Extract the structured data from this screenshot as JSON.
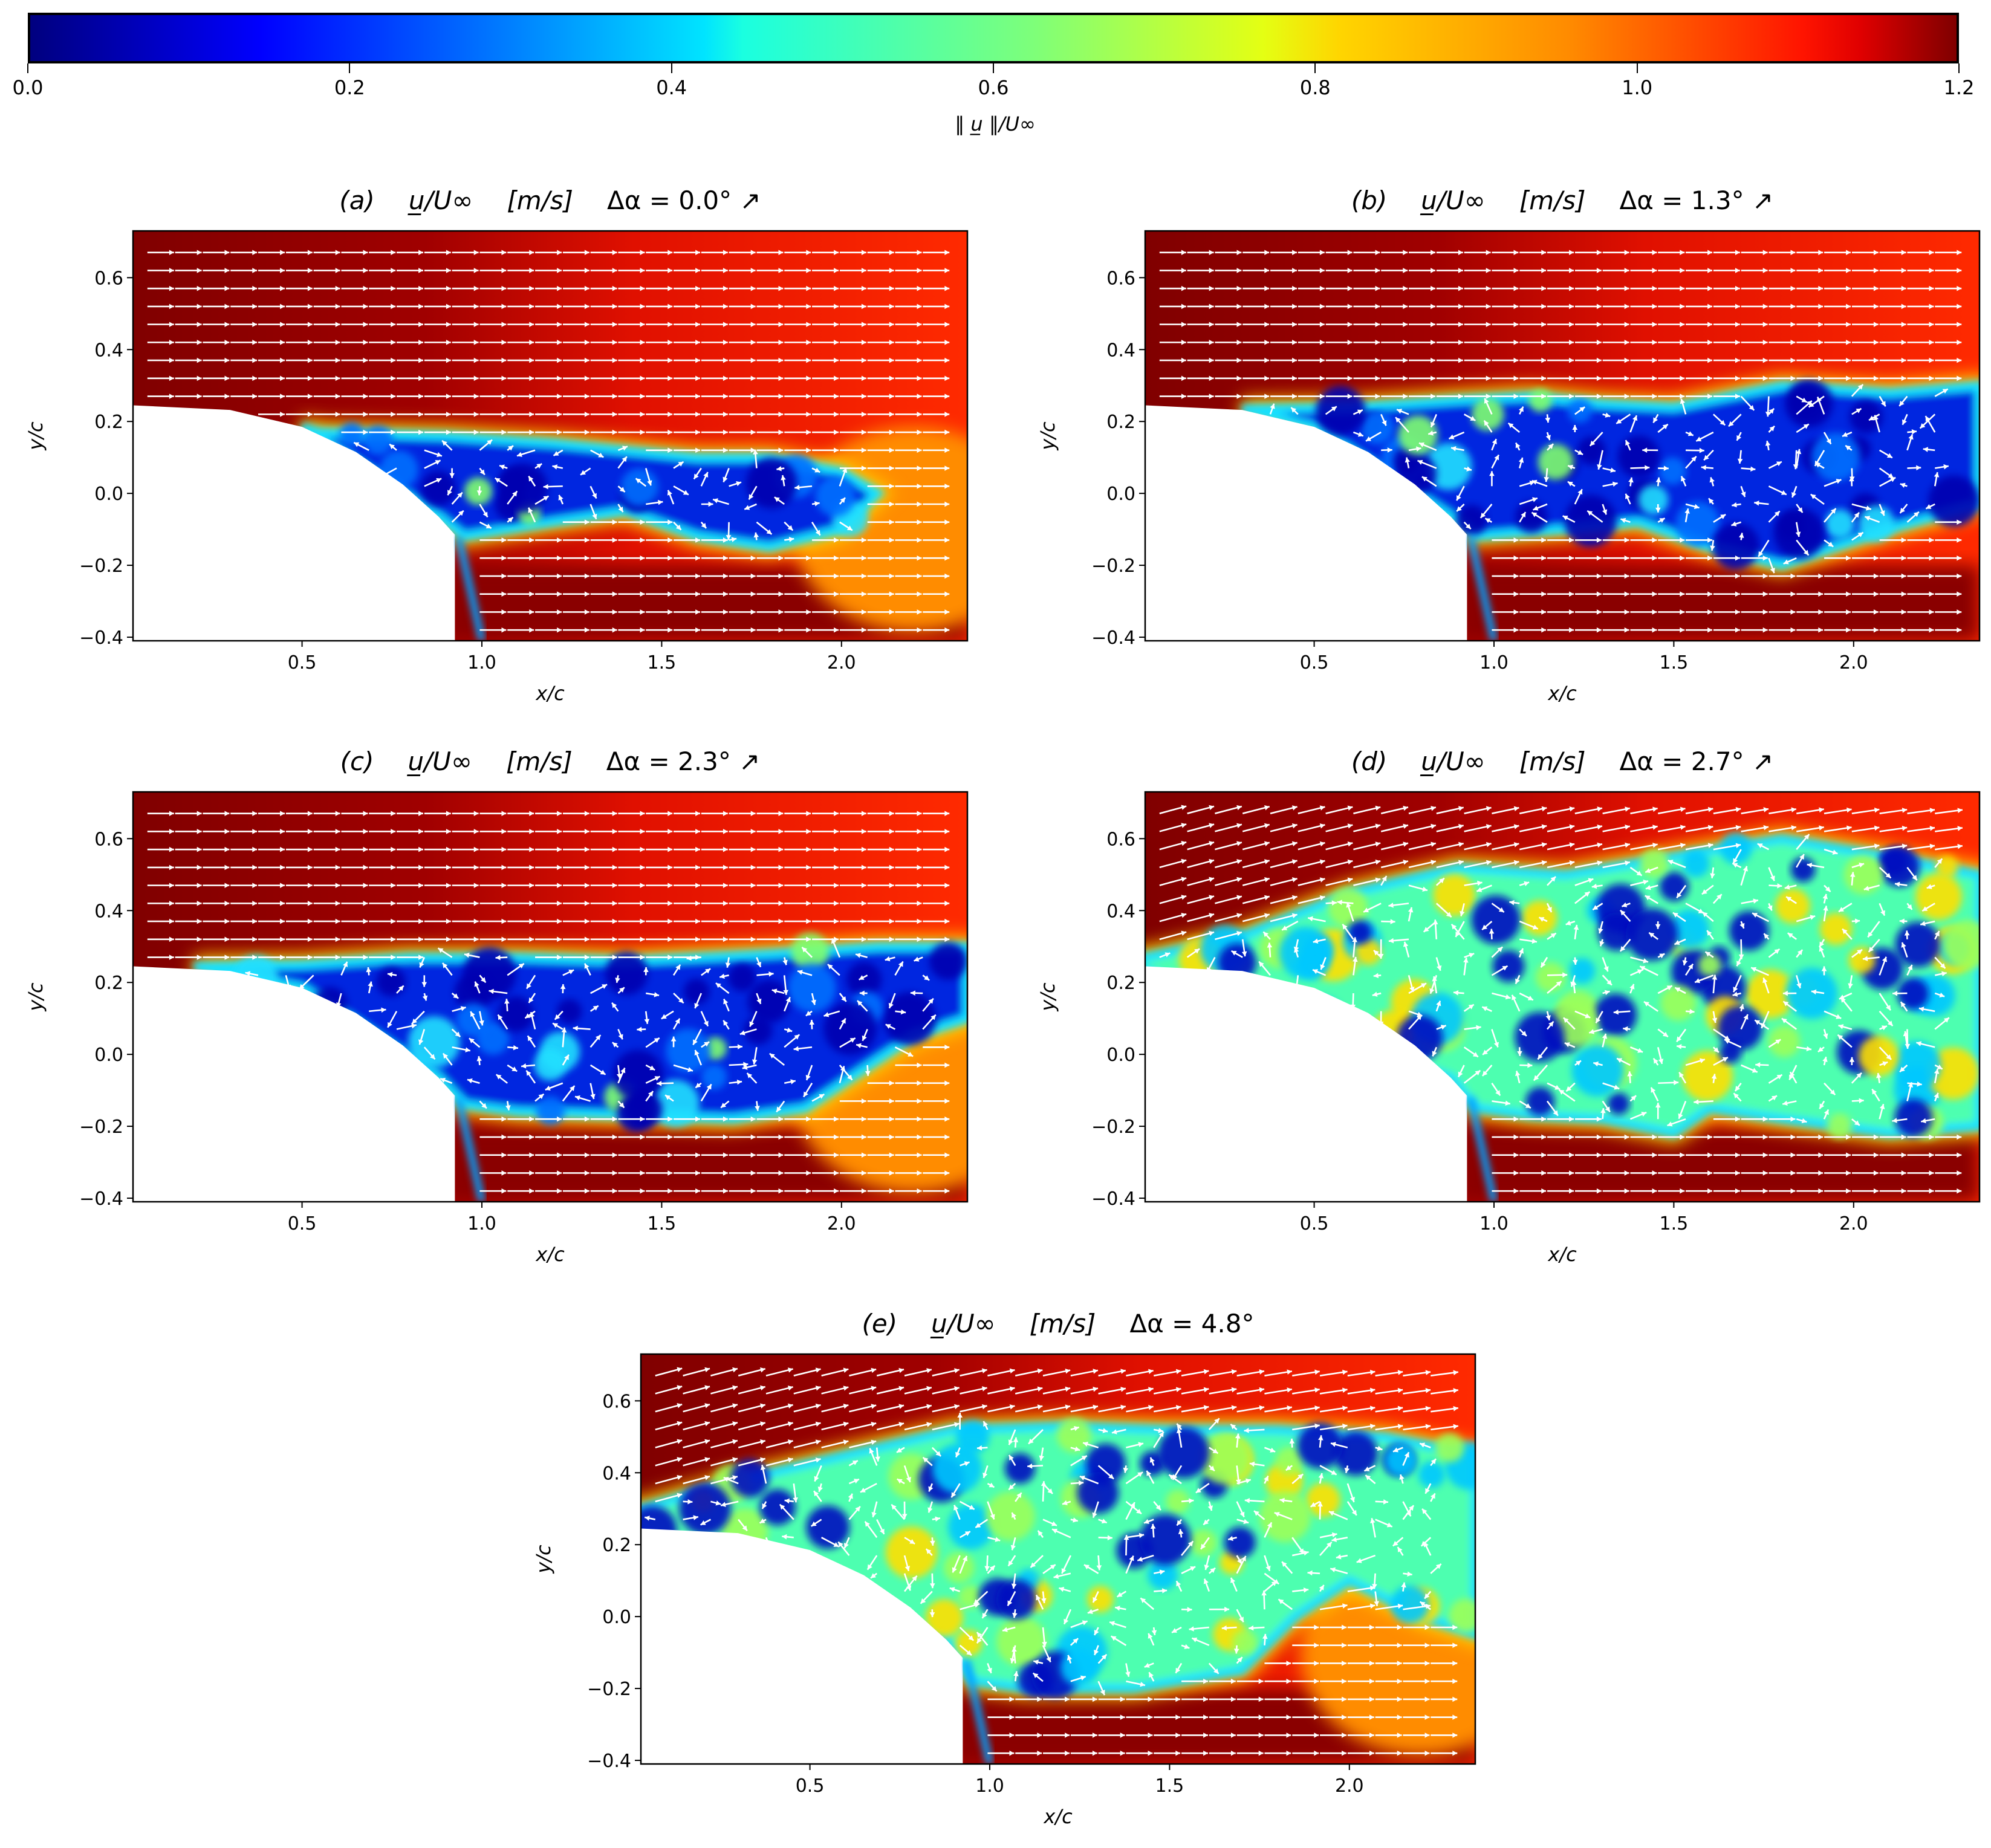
{
  "colorbar": {
    "label": "‖ u̲ ‖/U∞",
    "ticks": [
      "0.0",
      "0.2",
      "0.4",
      "0.6",
      "0.8",
      "1.0",
      "1.2"
    ],
    "range": [
      0,
      1.2
    ],
    "colormap": "jet"
  },
  "chart_data": [
    {
      "type": "heatmap",
      "panel": "(a)",
      "quantity": "u̲/U∞",
      "units": "[m/s]",
      "angle": "Δα = 0.0° ↗",
      "xlabel": "x/c",
      "ylabel": "y/c",
      "xlim": [
        0.03,
        2.35
      ],
      "ylim": [
        -0.41,
        0.73
      ],
      "xticks": [
        "0.5",
        "1.0",
        "1.5",
        "2.0"
      ],
      "yticks": [
        "−0.4",
        "−0.2",
        "0.0",
        "0.2",
        "0.4",
        "0.6"
      ]
    },
    {
      "type": "heatmap",
      "panel": "(b)",
      "quantity": "u̲/U∞",
      "units": "[m/s]",
      "angle": "Δα = 1.3° ↗",
      "xlabel": "x/c",
      "ylabel": "y/c",
      "xlim": [
        0.03,
        2.35
      ],
      "ylim": [
        -0.41,
        0.73
      ],
      "xticks": [
        "0.5",
        "1.0",
        "1.5",
        "2.0"
      ],
      "yticks": [
        "−0.4",
        "−0.2",
        "0.0",
        "0.2",
        "0.4",
        "0.6"
      ]
    },
    {
      "type": "heatmap",
      "panel": "(c)",
      "quantity": "u̲/U∞",
      "units": "[m/s]",
      "angle": "Δα = 2.3° ↗",
      "xlabel": "x/c",
      "ylabel": "y/c",
      "xlim": [
        0.03,
        2.35
      ],
      "ylim": [
        -0.41,
        0.73
      ],
      "xticks": [
        "0.5",
        "1.0",
        "1.5",
        "2.0"
      ],
      "yticks": [
        "−0.4",
        "−0.2",
        "0.0",
        "0.2",
        "0.4",
        "0.6"
      ]
    },
    {
      "type": "heatmap",
      "panel": "(d)",
      "quantity": "u̲/U∞",
      "units": "[m/s]",
      "angle": "Δα = 2.7° ↗",
      "xlabel": "x/c",
      "ylabel": "y/c",
      "xlim": [
        0.03,
        2.35
      ],
      "ylim": [
        -0.41,
        0.73
      ],
      "xticks": [
        "0.5",
        "1.0",
        "1.5",
        "2.0"
      ],
      "yticks": [
        "−0.4",
        "−0.2",
        "0.0",
        "0.2",
        "0.4",
        "0.6"
      ]
    },
    {
      "type": "heatmap",
      "panel": "(e)",
      "quantity": "u̲/U∞",
      "units": "[m/s]",
      "angle": "Δα = 4.8°",
      "xlabel": "x/c",
      "ylabel": "y/c",
      "xlim": [
        0.03,
        2.35
      ],
      "ylim": [
        -0.41,
        0.73
      ],
      "xticks": [
        "0.5",
        "1.0",
        "1.5",
        "2.0"
      ],
      "yticks": [
        "−0.4",
        "−0.2",
        "0.0",
        "0.2",
        "0.4",
        "0.6"
      ]
    }
  ]
}
